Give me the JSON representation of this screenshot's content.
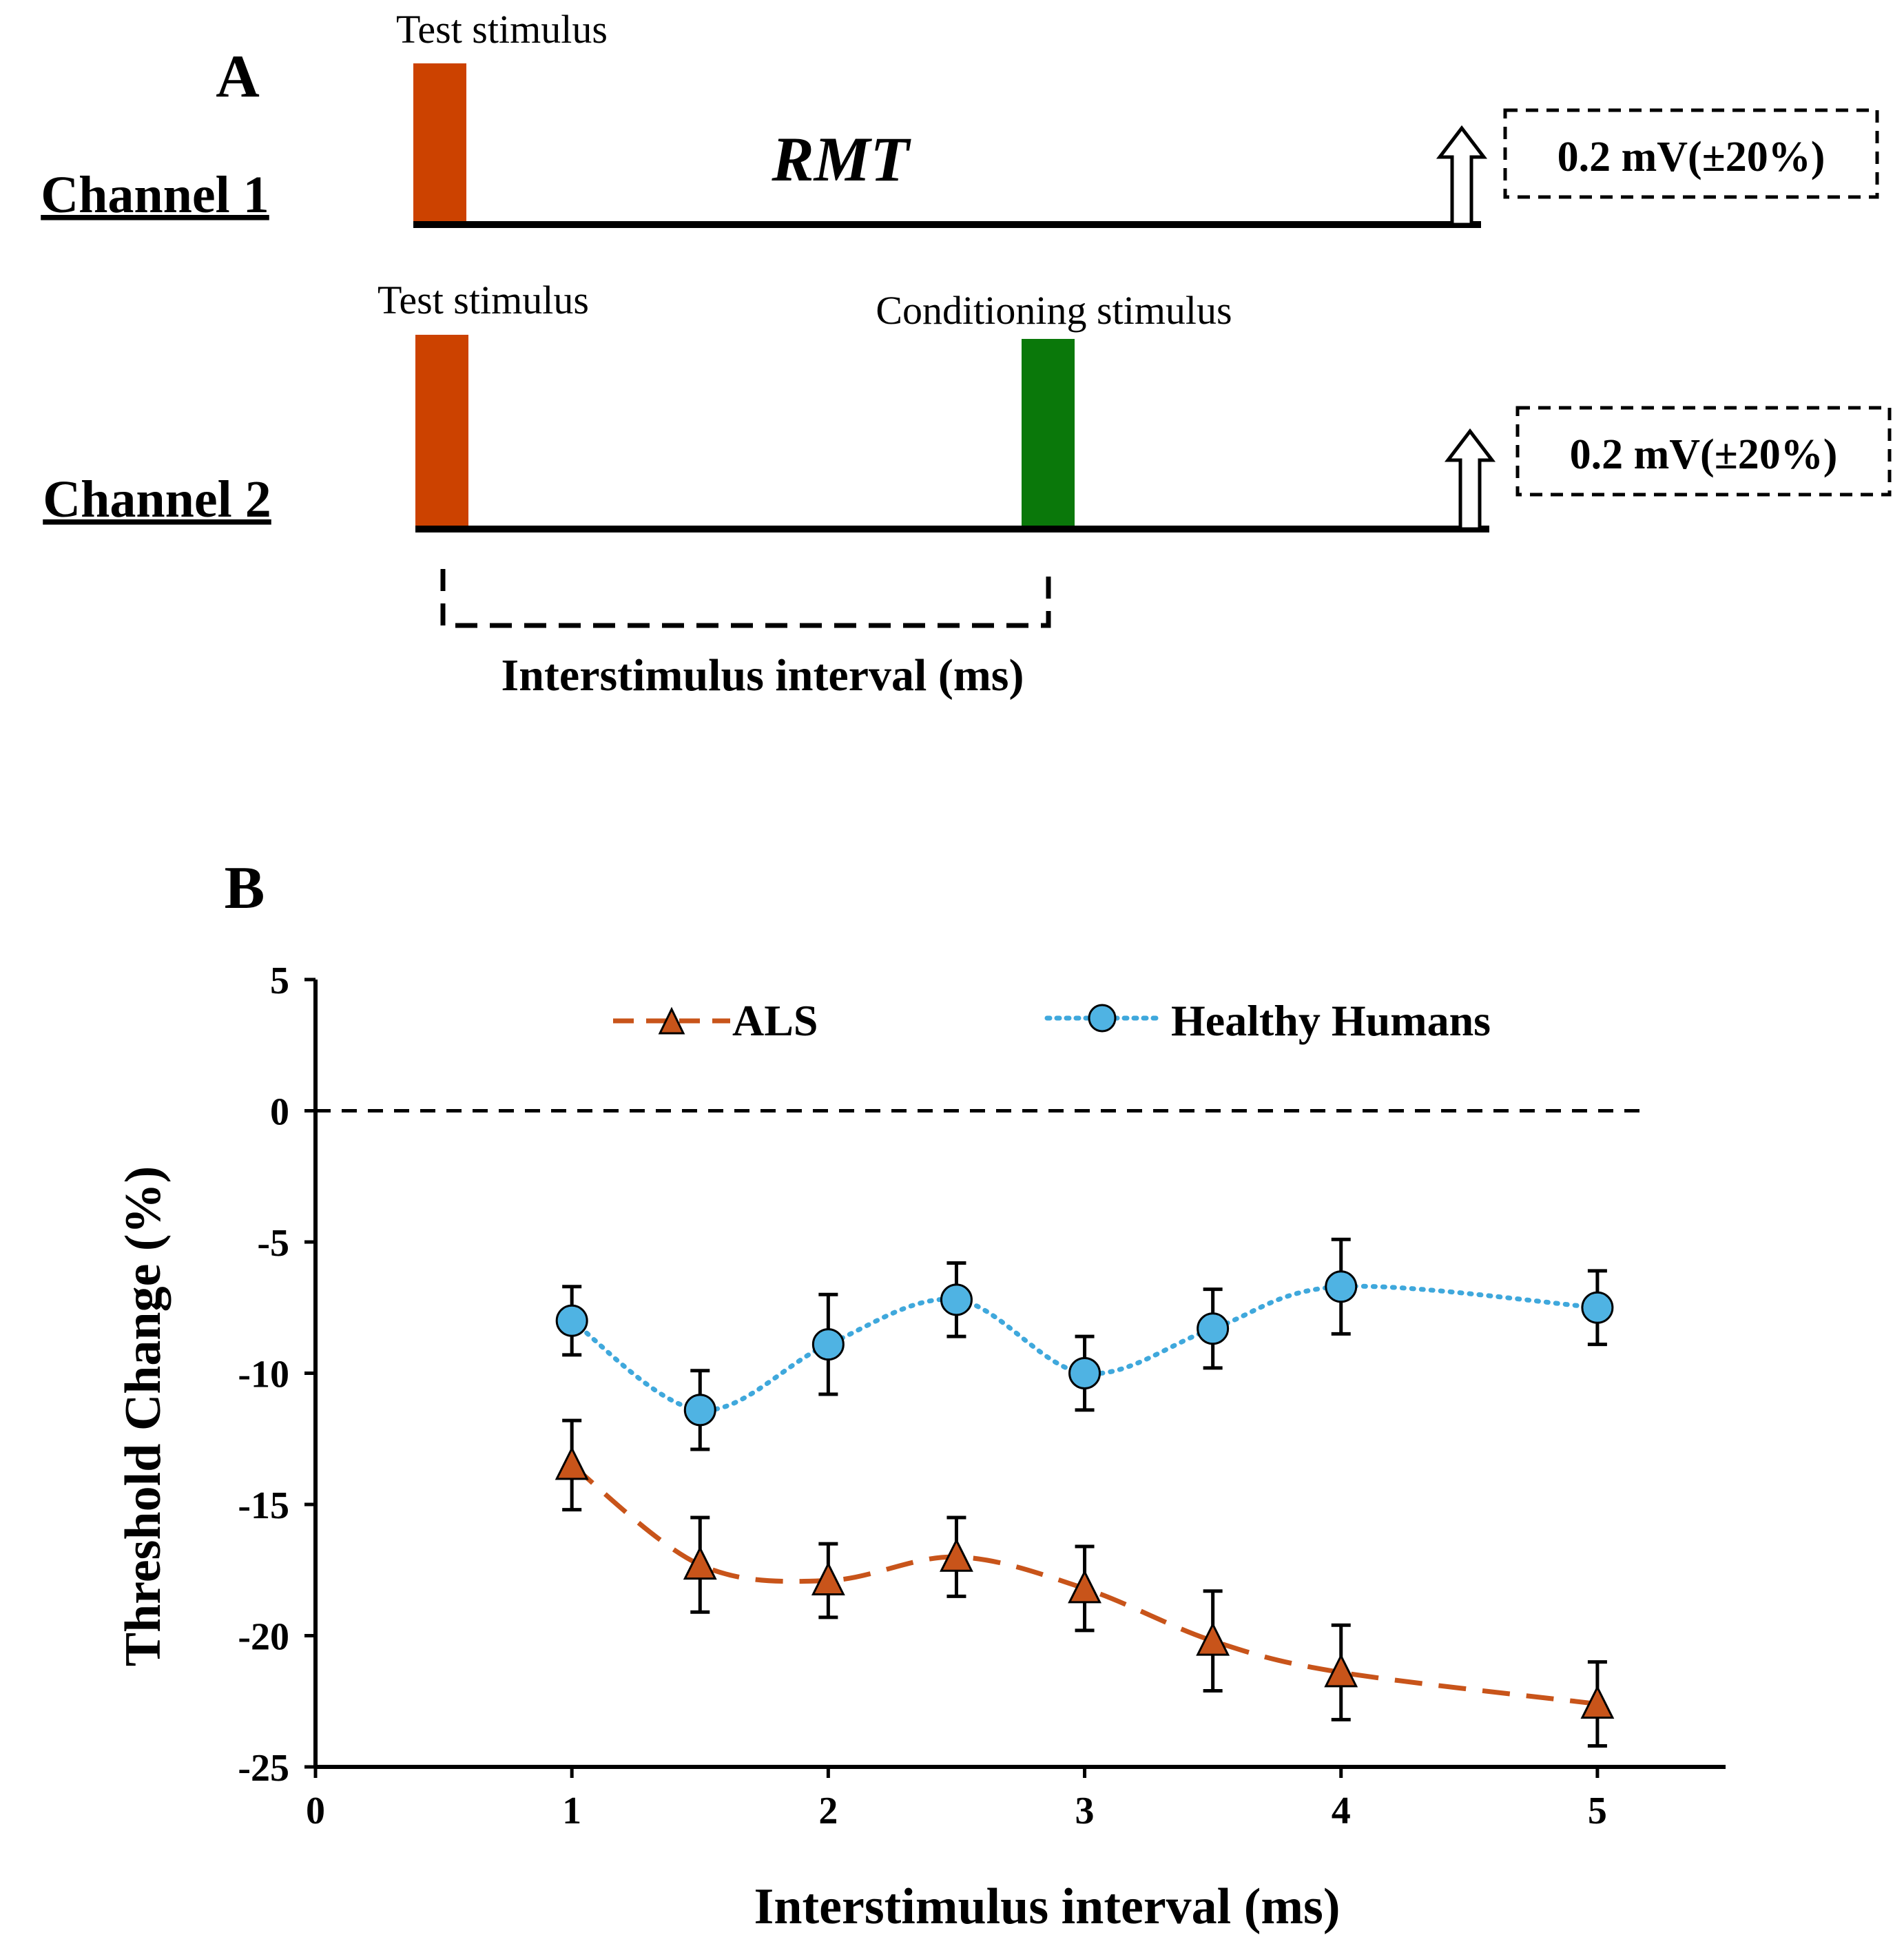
{
  "panel_a": {
    "letter": "A",
    "channel1": {
      "label": "Channel 1",
      "test_stimulus_label": "Test stimulus",
      "middle_label": "RMT",
      "target_label": "0.2 mV(±20%)"
    },
    "channel2": {
      "label": "Channel 2",
      "test_stimulus_label": "Test stimulus",
      "conditioning_label": "Conditioning stimulus",
      "target_label": "0.2 mV(±20%)"
    },
    "interval_label": "Interstimulus interval (ms)",
    "colors": {
      "test": "#cc4200",
      "conditioning": "#0a780a"
    }
  },
  "panel_b": {
    "letter": "B"
  },
  "chart_data": {
    "type": "line",
    "xlabel": "Interstimulus interval (ms)",
    "ylabel": "Threshold Change (%)",
    "xlim": [
      0,
      5.5
    ],
    "ylim": [
      -25,
      5
    ],
    "xticks": [
      0,
      1,
      2,
      3,
      4,
      5
    ],
    "yticks": [
      5,
      0,
      -5,
      -10,
      -15,
      -20,
      -25
    ],
    "reference_line": 0,
    "legend_position": "top",
    "series": [
      {
        "name": "ALS",
        "marker": "triangle",
        "line_style": "dashed",
        "color": "#c8541a",
        "x": [
          1,
          1.5,
          2,
          2.5,
          3,
          3.5,
          4,
          5
        ],
        "y": [
          -13.5,
          -17.3,
          -17.9,
          -17.0,
          -18.2,
          -20.2,
          -21.4,
          -22.6
        ],
        "err": [
          1.7,
          1.8,
          1.4,
          1.5,
          1.6,
          1.9,
          1.8,
          1.6
        ]
      },
      {
        "name": "Healthy Humans",
        "marker": "circle",
        "line_style": "dotted",
        "color": "#3fa8dc",
        "x": [
          1,
          1.5,
          2,
          2.5,
          3,
          3.5,
          4,
          5
        ],
        "y": [
          -8.0,
          -11.4,
          -8.9,
          -7.2,
          -10.0,
          -8.3,
          -6.7,
          -7.5
        ],
        "err": [
          1.3,
          1.5,
          1.9,
          1.4,
          1.4,
          1.5,
          1.8,
          1.4
        ]
      }
    ]
  }
}
